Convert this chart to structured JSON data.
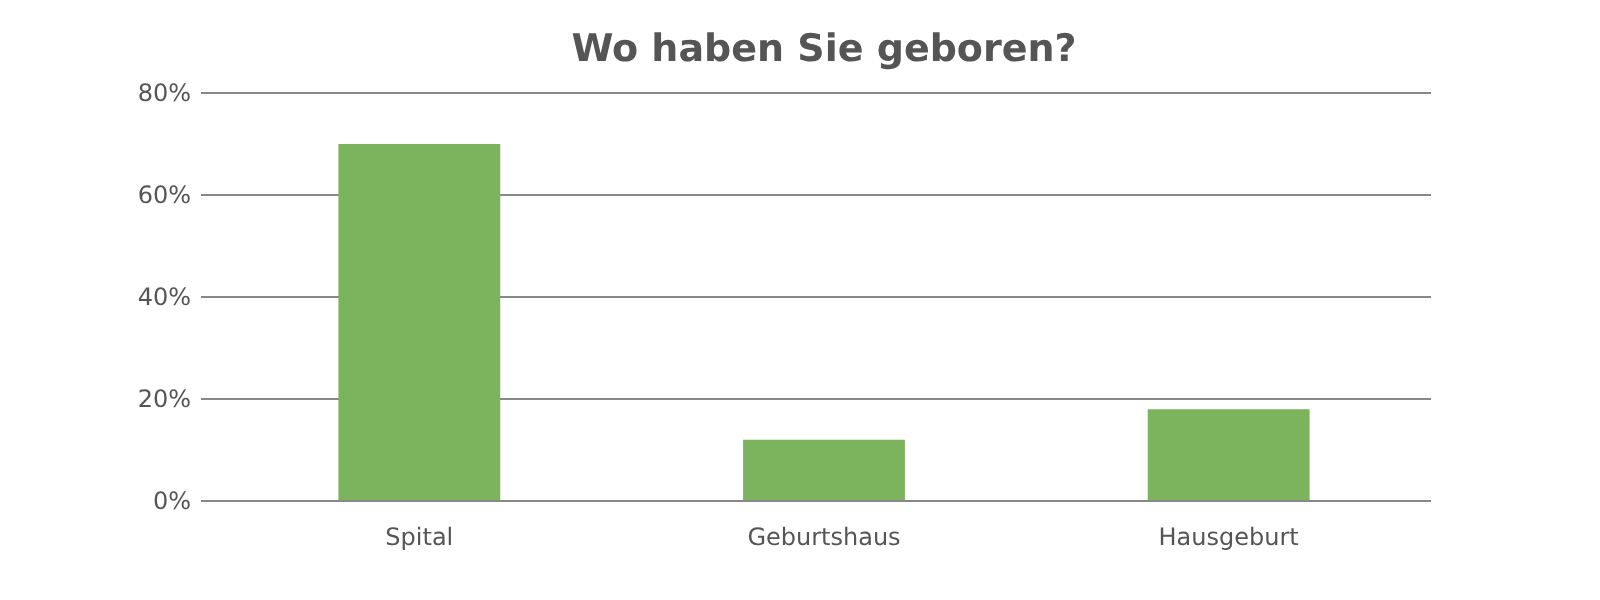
{
  "chart_data": {
    "type": "bar",
    "title": "Wo haben Sie geboren?",
    "categories": [
      "Spital",
      "Geburtshaus",
      "Hausgeburt"
    ],
    "values": [
      70,
      12,
      18
    ],
    "color": "#7cb45e",
    "ylim": [
      0,
      80
    ],
    "yticks": [
      {
        "value": 0,
        "label": "0%"
      },
      {
        "value": 20,
        "label": "20%"
      },
      {
        "value": 40,
        "label": "40%"
      },
      {
        "value": 60,
        "label": "60%"
      },
      {
        "value": 80,
        "label": "80%"
      }
    ],
    "grid": "y"
  }
}
